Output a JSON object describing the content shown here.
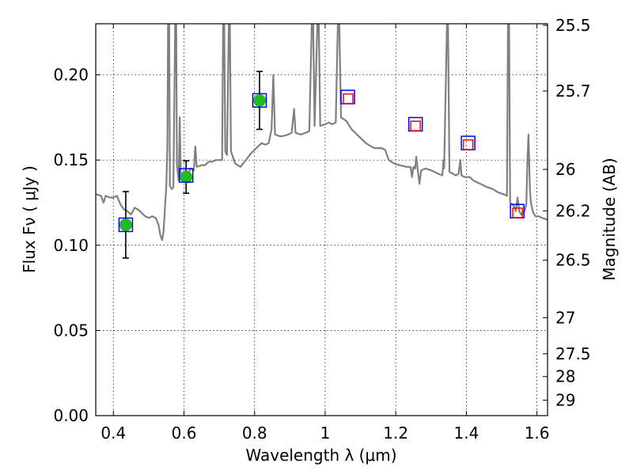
{
  "chart_data": {
    "type": "scatter",
    "xlabel": "Wavelength  λ (μm)",
    "ylabel": "Flux  Fν  ( μJy )",
    "y2label": "Magnitude (AB)",
    "xlim": [
      0.35,
      1.63
    ],
    "ylim": [
      0.0,
      0.23
    ],
    "grid": true,
    "x_ticks": [
      {
        "value": 0.4,
        "label": "0.4"
      },
      {
        "value": 0.6,
        "label": "0.6"
      },
      {
        "value": 0.8,
        "label": "0.8"
      },
      {
        "value": 1.0,
        "label": "1"
      },
      {
        "value": 1.2,
        "label": "1.2"
      },
      {
        "value": 1.4,
        "label": "1.4"
      },
      {
        "value": 1.6,
        "label": "1.6"
      }
    ],
    "y_ticks": [
      {
        "value": 0.0,
        "label": "0.00"
      },
      {
        "value": 0.05,
        "label": "0.05"
      },
      {
        "value": 0.1,
        "label": "0.10"
      },
      {
        "value": 0.15,
        "label": "0.15"
      },
      {
        "value": 0.2,
        "label": "0.20"
      }
    ],
    "y2_ticks": [
      {
        "label": "25.5",
        "flux": 0.2291
      },
      {
        "label": "25.7",
        "flux": 0.1905
      },
      {
        "label": "26",
        "flux": 0.1445
      },
      {
        "label": "26.2",
        "flux": 0.1202
      },
      {
        "label": "26.5",
        "flux": 0.0912
      },
      {
        "label": "27",
        "flux": 0.0575
      },
      {
        "label": "27.5",
        "flux": 0.0363
      },
      {
        "label": "28",
        "flux": 0.0229
      },
      {
        "label": "29",
        "flux": 0.0091
      }
    ],
    "series": [
      {
        "marker": "line",
        "color": "#808080",
        "points": [
          [
            0.35,
            0.13
          ],
          [
            0.365,
            0.129
          ],
          [
            0.372,
            0.125
          ],
          [
            0.378,
            0.129
          ],
          [
            0.39,
            0.128
          ],
          [
            0.4,
            0.128
          ],
          [
            0.41,
            0.129
          ],
          [
            0.42,
            0.124
          ],
          [
            0.43,
            0.121
          ],
          [
            0.44,
            0.12
          ],
          [
            0.45,
            0.118
          ],
          [
            0.46,
            0.122
          ],
          [
            0.47,
            0.121
          ],
          [
            0.48,
            0.119
          ],
          [
            0.49,
            0.117
          ],
          [
            0.5,
            0.116
          ],
          [
            0.51,
            0.117
          ],
          [
            0.52,
            0.116
          ],
          [
            0.528,
            0.112
          ],
          [
            0.533,
            0.106
          ],
          [
            0.538,
            0.103
          ],
          [
            0.542,
            0.108
          ],
          [
            0.547,
            0.125
          ],
          [
            0.55,
            0.135
          ],
          [
            0.553,
            0.16
          ],
          [
            0.555,
            0.23
          ],
          [
            0.558,
            0.23
          ],
          [
            0.56,
            0.135
          ],
          [
            0.565,
            0.133
          ],
          [
            0.57,
            0.134
          ],
          [
            0.575,
            0.23
          ],
          [
            0.578,
            0.23
          ],
          [
            0.58,
            0.147
          ],
          [
            0.585,
            0.138
          ],
          [
            0.588,
            0.175
          ],
          [
            0.591,
            0.139
          ],
          [
            0.6,
            0.14
          ],
          [
            0.61,
            0.142
          ],
          [
            0.62,
            0.145
          ],
          [
            0.628,
            0.144
          ],
          [
            0.632,
            0.158
          ],
          [
            0.636,
            0.146
          ],
          [
            0.65,
            0.147
          ],
          [
            0.66,
            0.147
          ],
          [
            0.67,
            0.149
          ],
          [
            0.68,
            0.149
          ],
          [
            0.69,
            0.15
          ],
          [
            0.7,
            0.15
          ],
          [
            0.708,
            0.15
          ],
          [
            0.711,
            0.23
          ],
          [
            0.714,
            0.23
          ],
          [
            0.717,
            0.155
          ],
          [
            0.722,
            0.153
          ],
          [
            0.727,
            0.23
          ],
          [
            0.73,
            0.23
          ],
          [
            0.733,
            0.155
          ],
          [
            0.745,
            0.148
          ],
          [
            0.76,
            0.146
          ],
          [
            0.775,
            0.15
          ],
          [
            0.79,
            0.154
          ],
          [
            0.8,
            0.156
          ],
          [
            0.81,
            0.158
          ],
          [
            0.82,
            0.16
          ],
          [
            0.83,
            0.159
          ],
          [
            0.84,
            0.16
          ],
          [
            0.848,
            0.168
          ],
          [
            0.853,
            0.2
          ],
          [
            0.858,
            0.165
          ],
          [
            0.87,
            0.164
          ],
          [
            0.88,
            0.164
          ],
          [
            0.895,
            0.165
          ],
          [
            0.905,
            0.166
          ],
          [
            0.912,
            0.18
          ],
          [
            0.916,
            0.166
          ],
          [
            0.93,
            0.165
          ],
          [
            0.945,
            0.166
          ],
          [
            0.955,
            0.167
          ],
          [
            0.962,
            0.23
          ],
          [
            0.966,
            0.23
          ],
          [
            0.97,
            0.17
          ],
          [
            0.978,
            0.23
          ],
          [
            0.982,
            0.23
          ],
          [
            0.986,
            0.17
          ],
          [
            1.0,
            0.171
          ],
          [
            1.01,
            0.172
          ],
          [
            1.02,
            0.171
          ],
          [
            1.03,
            0.172
          ],
          [
            1.036,
            0.23
          ],
          [
            1.04,
            0.23
          ],
          [
            1.045,
            0.175
          ],
          [
            1.06,
            0.173
          ],
          [
            1.075,
            0.168
          ],
          [
            1.085,
            0.166
          ],
          [
            1.1,
            0.163
          ],
          [
            1.115,
            0.16
          ],
          [
            1.13,
            0.158
          ],
          [
            1.14,
            0.157
          ],
          [
            1.16,
            0.157
          ],
          [
            1.17,
            0.156
          ],
          [
            1.18,
            0.15
          ],
          [
            1.195,
            0.148
          ],
          [
            1.21,
            0.147
          ],
          [
            1.23,
            0.146
          ],
          [
            1.242,
            0.146
          ],
          [
            1.246,
            0.14
          ],
          [
            1.25,
            0.146
          ],
          [
            1.255,
            0.145
          ],
          [
            1.258,
            0.152
          ],
          [
            1.262,
            0.145
          ],
          [
            1.267,
            0.136
          ],
          [
            1.272,
            0.144
          ],
          [
            1.285,
            0.145
          ],
          [
            1.3,
            0.144
          ],
          [
            1.32,
            0.142
          ],
          [
            1.332,
            0.141
          ],
          [
            1.335,
            0.15
          ],
          [
            1.337,
            0.145
          ],
          [
            1.345,
            0.23
          ],
          [
            1.348,
            0.23
          ],
          [
            1.352,
            0.143
          ],
          [
            1.362,
            0.142
          ],
          [
            1.37,
            0.141
          ],
          [
            1.378,
            0.142
          ],
          [
            1.383,
            0.15
          ],
          [
            1.386,
            0.141
          ],
          [
            1.395,
            0.14
          ],
          [
            1.41,
            0.14
          ],
          [
            1.42,
            0.138
          ],
          [
            1.43,
            0.137
          ],
          [
            1.44,
            0.136
          ],
          [
            1.45,
            0.135
          ],
          [
            1.46,
            0.134
          ],
          [
            1.475,
            0.133
          ],
          [
            1.49,
            0.131
          ],
          [
            1.505,
            0.13
          ],
          [
            1.515,
            0.129
          ],
          [
            1.518,
            0.23
          ],
          [
            1.521,
            0.23
          ],
          [
            1.524,
            0.125
          ],
          [
            1.535,
            0.123
          ],
          [
            1.54,
            0.12
          ],
          [
            1.545,
            0.128
          ],
          [
            1.55,
            0.12
          ],
          [
            1.555,
            0.118
          ],
          [
            1.565,
            0.12
          ],
          [
            1.57,
            0.124
          ],
          [
            1.573,
            0.15
          ],
          [
            1.576,
            0.165
          ],
          [
            1.58,
            0.133
          ],
          [
            1.583,
            0.125
          ],
          [
            1.588,
            0.12
          ],
          [
            1.595,
            0.117
          ],
          [
            1.605,
            0.117
          ],
          [
            1.615,
            0.116
          ],
          [
            1.63,
            0.115
          ]
        ]
      },
      {
        "marker": "filled-circle",
        "color": "#22bb22",
        "points": [
          {
            "x": 0.435,
            "y": 0.112,
            "err": 0.0195
          },
          {
            "x": 0.606,
            "y": 0.14,
            "err": 0.0095
          },
          {
            "x": 0.814,
            "y": 0.185,
            "err": 0.017
          }
        ]
      },
      {
        "marker": "open-square",
        "color": "#0000ff",
        "points": [
          {
            "x": 0.435,
            "y": 0.112
          },
          {
            "x": 0.606,
            "y": 0.141
          },
          {
            "x": 0.814,
            "y": 0.185
          },
          {
            "x": 1.064,
            "y": 0.187
          },
          {
            "x": 1.256,
            "y": 0.171
          },
          {
            "x": 1.405,
            "y": 0.16
          },
          {
            "x": 1.544,
            "y": 0.12
          }
        ]
      },
      {
        "marker": "open-square",
        "color": "#ff0000",
        "points": [
          {
            "x": 1.065,
            "y": 0.186
          },
          {
            "x": 1.256,
            "y": 0.17
          },
          {
            "x": 1.405,
            "y": 0.159
          },
          {
            "x": 1.545,
            "y": 0.119
          }
        ]
      }
    ]
  }
}
